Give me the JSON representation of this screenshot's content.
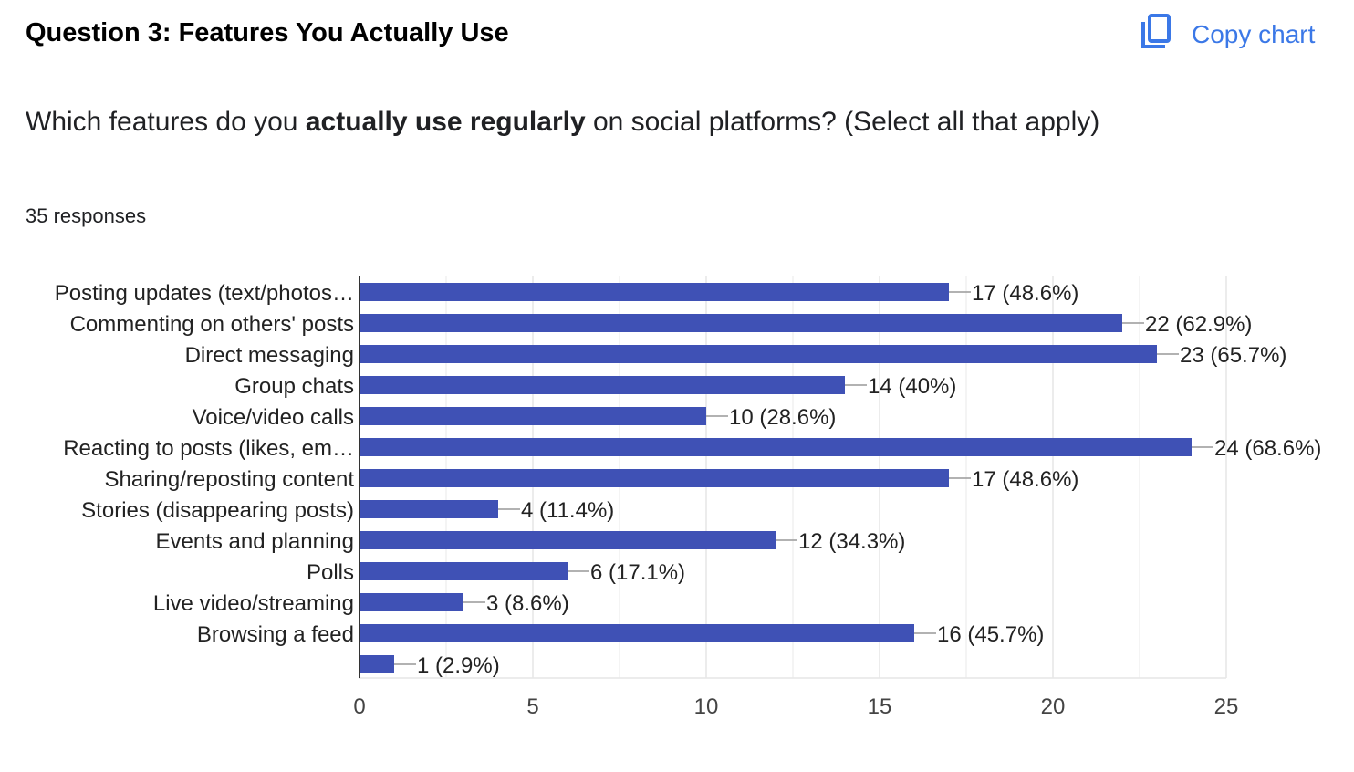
{
  "header": {
    "title": "Question 3: Features You Actually Use",
    "copy_label": "Copy chart",
    "copy_icon": "copy-icon",
    "accent": "#3b78e7"
  },
  "question": {
    "before": "Which features do you ",
    "bold": "actually use regularly",
    "after": " on social platforms? (Select all that apply)"
  },
  "responses": "35 responses",
  "chart_data": {
    "type": "bar",
    "orientation": "horizontal",
    "categories": [
      "Posting updates (text/photos…",
      "Commenting on others' posts",
      "Direct messaging",
      "Group chats",
      "Voice/video calls",
      "Reacting to posts (likes, em…",
      "Sharing/reposting content",
      "Stories (disappearing posts)",
      "Events and planning",
      "Polls",
      "Live video/streaming",
      "Browsing a feed",
      ""
    ],
    "values": [
      17,
      22,
      23,
      14,
      10,
      24,
      17,
      4,
      12,
      6,
      3,
      16,
      1
    ],
    "data_labels": [
      "17 (48.6%)",
      "22 (62.9%)",
      "23 (65.7%)",
      "14 (40%)",
      "10 (28.6%)",
      "24 (68.6%)",
      "17 (48.6%)",
      "4 (11.4%)",
      "12 (34.3%)",
      "6 (17.1%)",
      "3 (8.6%)",
      "16 (45.7%)",
      "1 (2.9%)"
    ],
    "xlim": [
      0,
      25
    ],
    "xticks": [
      "0",
      "5",
      "10",
      "15",
      "20",
      "25"
    ],
    "grid": true,
    "bar_color": "#3f51b5"
  }
}
